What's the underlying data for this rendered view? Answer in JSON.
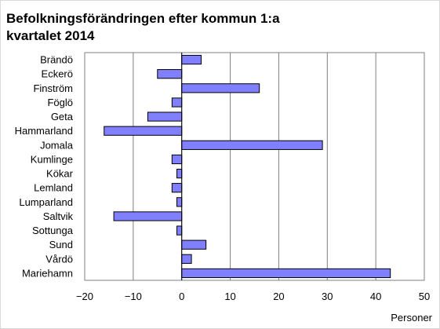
{
  "chart_data": {
    "type": "bar",
    "orientation": "horizontal",
    "title": "Befolkningsförändringen efter kommun 1:a kvartalet 2014",
    "xlabel": "Personer",
    "ylabel": "",
    "xlim": [
      -20,
      50
    ],
    "xticks": [
      -20,
      -10,
      0,
      10,
      20,
      30,
      40,
      50
    ],
    "grid": true,
    "categories": [
      "Brändö",
      "Eckerö",
      "Finström",
      "Föglö",
      "Geta",
      "Hammarland",
      "Jomala",
      "Kumlinge",
      "Kökar",
      "Lemland",
      "Lumparland",
      "Saltvik",
      "Sottunga",
      "Sund",
      "Vårdö",
      "Mariehamn"
    ],
    "values": [
      4,
      -5,
      16,
      -2,
      -7,
      -16,
      29,
      -2,
      -1,
      -2,
      -1,
      -14,
      -1,
      5,
      2,
      43
    ],
    "bar_color": "#8080ff"
  }
}
